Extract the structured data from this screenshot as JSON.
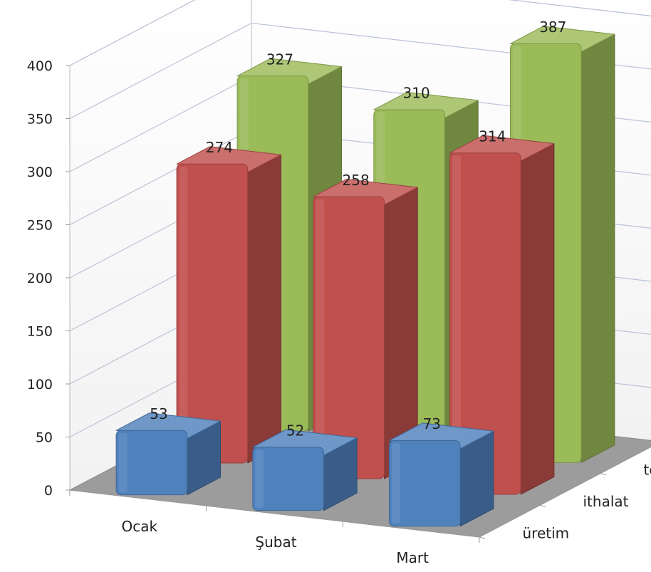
{
  "chart_data": {
    "type": "bar",
    "categories": [
      "Ocak",
      "Şubat",
      "Mart"
    ],
    "series": [
      {
        "name": "üretim",
        "values": [
          53,
          52,
          73
        ],
        "color": "#4f81bd"
      },
      {
        "name": "ithalat",
        "values": [
          274,
          258,
          314
        ],
        "color": "#c0504d"
      },
      {
        "name": "toplam",
        "values": [
          327,
          310,
          387
        ],
        "color": "#9bbb59"
      }
    ],
    "ylim": [
      0,
      400
    ],
    "yticks": [
      "0",
      "50",
      "100",
      "150",
      "200",
      "250",
      "300",
      "350",
      "400"
    ],
    "grid": true,
    "floor_color": "#9c9c9c"
  }
}
